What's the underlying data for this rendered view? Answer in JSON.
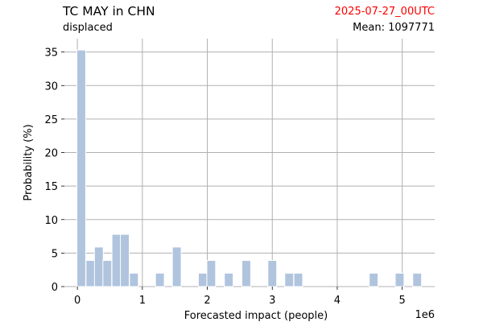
{
  "header": {
    "title": "TC MAY in CHN",
    "subtitle": "displaced",
    "date": "2025-07-27_00UTC",
    "mean": "Mean: 1097771"
  },
  "colors": {
    "bar": "#b0c4de",
    "date_text": "#ff0000",
    "grid": "#b0b0b0"
  },
  "chart_data": {
    "type": "bar",
    "title": "TC MAY in CHN",
    "xlabel": "Forecasted impact (people)",
    "ylabel": "Probability (%)",
    "x_offset_label": "1e6",
    "xlim": [
      -0.2,
      5.5
    ],
    "ylim": [
      0,
      37
    ],
    "xticks": [
      0,
      1,
      2,
      3,
      4,
      5
    ],
    "yticks": [
      0,
      5,
      10,
      15,
      20,
      25,
      30,
      35
    ],
    "grid": true,
    "bin_width": 0.135,
    "x": [
      0.06,
      0.2,
      0.33,
      0.46,
      0.6,
      0.73,
      0.87,
      1.27,
      1.53,
      1.93,
      2.06,
      2.33,
      2.6,
      3.0,
      3.26,
      3.4,
      4.56,
      4.96,
      5.23
    ],
    "values": [
      35.3,
      3.9,
      5.9,
      3.9,
      7.8,
      7.8,
      2.0,
      2.0,
      5.9,
      2.0,
      3.9,
      2.0,
      3.9,
      3.9,
      2.0,
      2.0,
      2.0,
      2.0,
      2.0
    ]
  }
}
